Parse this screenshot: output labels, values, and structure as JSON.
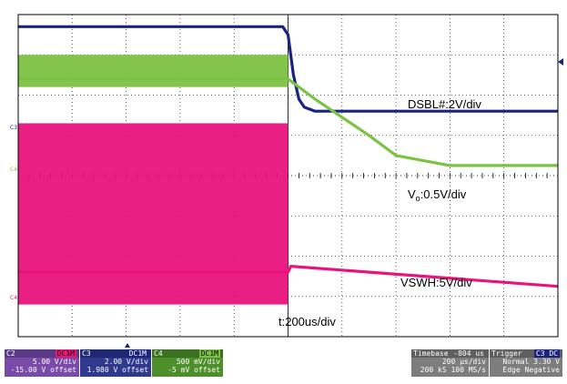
{
  "chart_data": {
    "type": "line",
    "x_range": [
      -1000,
      1000
    ],
    "y_range": [
      -4,
      4
    ],
    "grid": true,
    "annotations": {
      "dsbl": "DSBL#:2V/div",
      "vo_main": "V",
      "vo_sub": "o",
      "vo_rest": ":0.5V/div",
      "vswh": "VSWH:5V/div",
      "time": "t:200us/div"
    },
    "channel_markers": [
      "C3",
      "C4",
      "C4"
    ],
    "series": [
      {
        "color": "#1a237e",
        "x": [
          -1000,
          -20,
          0,
          20,
          40,
          60,
          100,
          1000
        ],
        "y": [
          3.7,
          3.7,
          3.5,
          2.5,
          1.9,
          1.7,
          1.6,
          1.6
        ]
      },
      {
        "color": "#7cc242",
        "x": [
          -1000,
          0,
          100,
          300,
          400,
          600,
          1000
        ],
        "y": [
          2.4,
          2.4,
          1.9,
          1.0,
          0.5,
          0.25,
          0.25
        ]
      },
      {
        "color": "#e8137d",
        "x": [
          -1000,
          0,
          10,
          1000
        ],
        "y": [
          -2.4,
          -2.4,
          -2.25,
          -2.75
        ]
      }
    ],
    "pre_trigger_bands": [
      {
        "color": "#7cc242",
        "x_end": 0,
        "y_range": [
          2.2,
          3.0
        ]
      },
      {
        "color": "#e8137d",
        "x_end": 0,
        "y_range": [
          -3.2,
          1.3
        ]
      }
    ]
  },
  "panels": {
    "ch2": {
      "label": "C2",
      "badge": "DC1M",
      "v1": "5.00 V/div",
      "v2": "-15.00 V offset"
    },
    "ch3": {
      "label": "C3",
      "badge": "DC1M",
      "v1": "2.00 V/div",
      "v2": "1.980 V offset"
    },
    "ch4": {
      "label": "C4",
      "badge": "DC1M",
      "v1": "500 mV/div",
      "v2": "-5 mV offset"
    },
    "timebase": {
      "label": "Timebase",
      "value": "-804 us",
      "v1": "200 µs/div",
      "v2": "200 kS  100 MS/s"
    },
    "trigger": {
      "label": "Trigger",
      "badge": "C3 DC",
      "v1": "Normal  3.30 V",
      "v2": "Edge  Negative"
    }
  }
}
